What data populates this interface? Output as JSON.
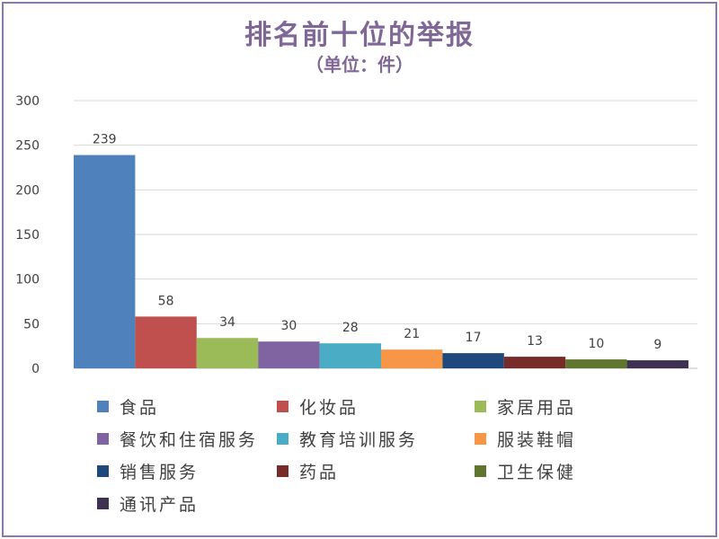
{
  "chart_data": {
    "type": "bar",
    "title": "排名前十位的举报",
    "subtitle": "（单位：件）",
    "categories": [
      "食品",
      "化妆品",
      "家居用品",
      "餐饮和住宿服务",
      "教育培训服务",
      "服装鞋帽",
      "销售服务",
      "药品",
      "卫生保健",
      "通讯产品"
    ],
    "values": [
      239,
      58,
      34,
      30,
      28,
      21,
      17,
      13,
      10,
      9
    ],
    "colors": [
      "#4f81bd",
      "#c0504d",
      "#9bbb59",
      "#8064a2",
      "#4bacc6",
      "#f79646",
      "#1f497d",
      "#772c2a",
      "#5f7530",
      "#3f3151"
    ],
    "ylim": [
      0,
      300
    ],
    "yticks": [
      "0",
      "50",
      "100",
      "150",
      "200",
      "250",
      "300"
    ],
    "grid": true,
    "legend_position": "bottom"
  }
}
